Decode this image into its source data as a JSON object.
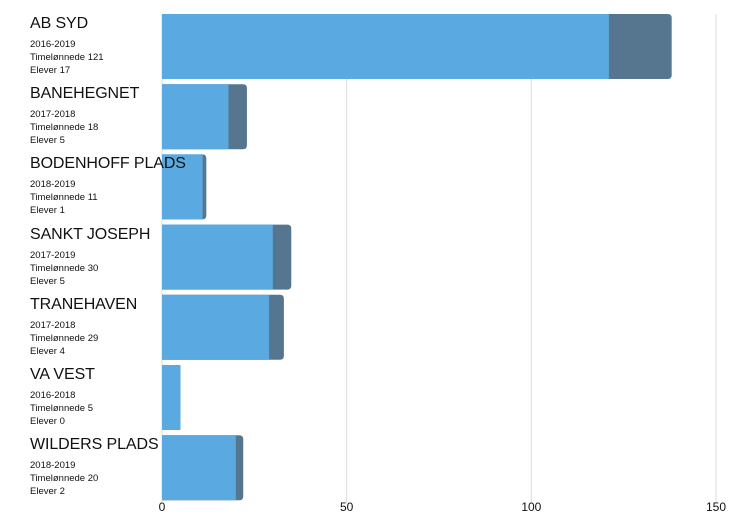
{
  "chart_data": {
    "type": "bar",
    "orientation": "horizontal",
    "stacked": true,
    "grid": true,
    "xlim": [
      0,
      150
    ],
    "xticks": [
      0,
      50,
      100,
      150
    ],
    "colors": {
      "primary": "#5aa9e0",
      "secondary": "#56768f"
    },
    "categories": [
      {
        "name": "AB SYD",
        "period": "2016-2019",
        "hours_label": "Timelønnede 121",
        "students_label": "Elever 17",
        "hours": 121,
        "students": 17
      },
      {
        "name": "BANEHEGNET",
        "period": "2017-2018",
        "hours_label": "Timelønnede 18",
        "students_label": "Elever 5",
        "hours": 18,
        "students": 5
      },
      {
        "name": "BODENHOFF PLADS",
        "period": "2018-2019",
        "hours_label": "Timelønnede 11",
        "students_label": "Elever 1",
        "hours": 11,
        "students": 1
      },
      {
        "name": "SANKT JOSEPH",
        "period": "2017-2019",
        "hours_label": "Timelønnede 30",
        "students_label": "Elever 5",
        "hours": 30,
        "students": 5
      },
      {
        "name": "TRANEHAVEN",
        "period": "2017-2018",
        "hours_label": "Timelønnede 29",
        "students_label": "Elever 4",
        "hours": 29,
        "students": 4
      },
      {
        "name": "VA VEST",
        "period": "2016-2018",
        "hours_label": "Timelønnede 5",
        "students_label": "Elever 0",
        "hours": 5,
        "students": 0
      },
      {
        "name": "WILDERS PLADS",
        "period": "2018-2019",
        "hours_label": "Timelønnede 20",
        "students_label": "Elever 2",
        "hours": 20,
        "students": 2
      }
    ]
  }
}
